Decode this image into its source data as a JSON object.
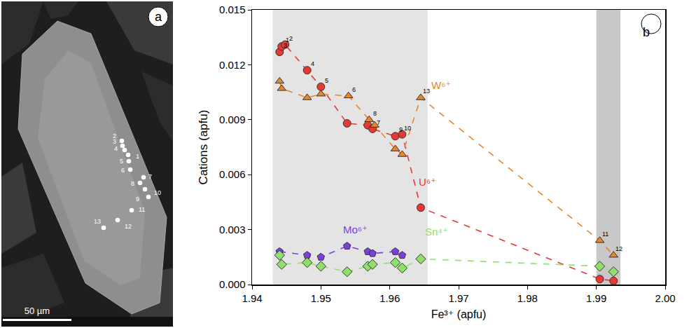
{
  "micrograph": {
    "panel_label": "a",
    "scale_bar": "50 µm",
    "spot_labels": [
      "1",
      "2",
      "3",
      "4",
      "5",
      "6",
      "7",
      "8",
      "9",
      "10",
      "11",
      "12",
      "13"
    ]
  },
  "chart_data": {
    "type": "scatter",
    "panel_label": "b",
    "x_label": "Fe³⁺ (apfu)",
    "y_label": "Cations (apfu)",
    "xlim": [
      1.94,
      2.0
    ],
    "xticks": [
      1.94,
      1.95,
      1.96,
      1.97,
      1.98,
      1.99,
      {
        "value": 2,
        "label": "2.00"
      }
    ],
    "ylim": [
      0,
      0.015
    ],
    "yticks": [
      {
        "value": 0,
        "label": "0.000"
      },
      0.003,
      0.006,
      0.009,
      0.012,
      0.015
    ],
    "grid": false,
    "bands": [
      {
        "x0": 1.943,
        "x1": 1.9655,
        "color": "#e4e4e4"
      },
      {
        "x0": 1.99,
        "x1": 1.9935,
        "color": "#c8c8c8"
      }
    ],
    "series": [
      {
        "name": "U⁶⁺",
        "color": "#e53935",
        "marker": "circle",
        "line_style": "dash",
        "x": [
          1.944,
          1.9443,
          1.9448,
          1.948,
          1.95,
          1.9538,
          1.9568,
          1.9575,
          1.9608,
          1.9618,
          1.9645,
          1.9905,
          1.9925
        ],
        "values": [
          0.0127,
          0.013,
          0.0131,
          0.0117,
          0.0108,
          0.0088,
          0.0087,
          0.0085,
          0.0081,
          0.0082,
          0.0042,
          0.0003,
          0.0002
        ],
        "point_labels": [
          "3",
          "1",
          "2",
          "4",
          "5",
          null,
          null,
          "7",
          "9",
          "10",
          null,
          null,
          null
        ],
        "label_x": 1.9655,
        "label_y": 0.0056
      },
      {
        "name": "W⁶⁺",
        "color": "#e8862a",
        "marker": "triangle-up",
        "line_style": "dash",
        "x": [
          1.944,
          1.9443,
          1.948,
          1.95,
          1.954,
          1.957,
          1.9578,
          1.9608,
          1.9618,
          1.9645,
          1.9905,
          1.9925
        ],
        "values": [
          0.0111,
          0.0107,
          0.0102,
          0.0104,
          0.0103,
          0.009,
          0.0087,
          0.0074,
          0.0071,
          0.0102,
          0.0024,
          0.0016
        ],
        "point_labels": [
          null,
          null,
          null,
          null,
          "6",
          "8",
          null,
          null,
          null,
          "13",
          "11",
          "12"
        ],
        "label_x": 1.9675,
        "label_y": 0.0109
      },
      {
        "name": "Mo⁶⁺",
        "color": "#7b3fe0",
        "marker": "pentagon",
        "line_style": "dash",
        "x": [
          1.944,
          1.948,
          1.95,
          1.9538,
          1.9568,
          1.9575,
          1.9608,
          1.9618
        ],
        "values": [
          0.0018,
          0.0016,
          0.0015,
          0.0021,
          0.0018,
          0.0017,
          0.0018,
          0.0016
        ],
        "label_x": 1.955,
        "label_y": 0.003
      },
      {
        "name": "Sn⁴⁺",
        "color": "#8fe06a",
        "marker": "diamond",
        "line_style": "dash",
        "x": [
          1.944,
          1.9443,
          1.948,
          1.95,
          1.9538,
          1.9568,
          1.9575,
          1.9608,
          1.9618,
          1.9645,
          1.9905,
          1.9925
        ],
        "values": [
          0.0016,
          0.0011,
          0.0012,
          0.001,
          0.0007,
          0.001,
          0.0011,
          0.0012,
          0.0009,
          0.0014,
          0.001,
          0.0007
        ],
        "label_x": 1.9668,
        "label_y": 0.0029
      }
    ]
  }
}
